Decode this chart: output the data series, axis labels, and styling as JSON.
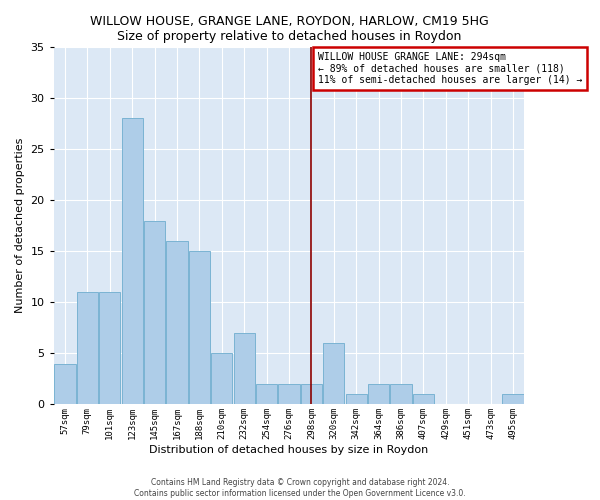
{
  "title": "WILLOW HOUSE, GRANGE LANE, ROYDON, HARLOW, CM19 5HG",
  "subtitle": "Size of property relative to detached houses in Roydon",
  "xlabel": "Distribution of detached houses by size in Roydon",
  "ylabel": "Number of detached properties",
  "categories": [
    "57sqm",
    "79sqm",
    "101sqm",
    "123sqm",
    "145sqm",
    "167sqm",
    "188sqm",
    "210sqm",
    "232sqm",
    "254sqm",
    "276sqm",
    "298sqm",
    "320sqm",
    "342sqm",
    "364sqm",
    "386sqm",
    "407sqm",
    "429sqm",
    "451sqm",
    "473sqm",
    "495sqm"
  ],
  "values": [
    4,
    11,
    11,
    28,
    18,
    16,
    15,
    5,
    7,
    2,
    2,
    2,
    6,
    1,
    2,
    2,
    1,
    0,
    0,
    0,
    1
  ],
  "bar_color": "#aecde8",
  "bar_edge_color": "#7ab3d3",
  "highlight_index": 11,
  "highlight_color": "#8b0000",
  "legend_text_line1": "WILLOW HOUSE GRANGE LANE: 294sqm",
  "legend_text_line2": "← 89% of detached houses are smaller (118)",
  "legend_text_line3": "11% of semi-detached houses are larger (14) →",
  "legend_box_color": "#cc0000",
  "ylim": [
    0,
    35
  ],
  "yticks": [
    0,
    5,
    10,
    15,
    20,
    25,
    30,
    35
  ],
  "background_color": "#dce8f5",
  "footer_line1": "Contains HM Land Registry data © Crown copyright and database right 2024.",
  "footer_line2": "Contains public sector information licensed under the Open Government Licence v3.0."
}
